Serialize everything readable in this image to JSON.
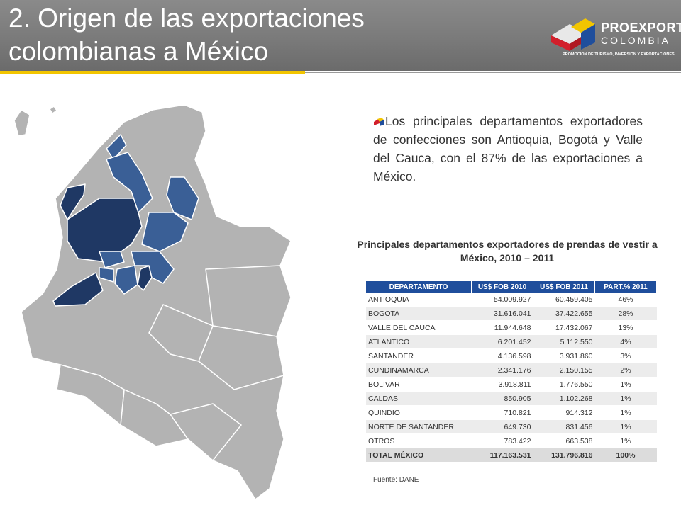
{
  "title": "2. Origen de las exportaciones colombianas a México",
  "logo": {
    "line1": "PROEXPORT",
    "line2": "COLOMBIA",
    "tagline": "PROMOCIÓN DE TURISMO, INVERSIÓN Y EXPORTACIONES"
  },
  "bullet_text": "Los principales departamentos exportadores de confecciones son Antioquia, Bogotá y Valle del Cauca, con el 87% de las exportaciones a México.",
  "table": {
    "title": "Principales departamentos exportadores de prendas de vestir a México, 2010 – 2011",
    "headers": [
      "DEPARTAMENTO",
      "US$ FOB 2010",
      "US$ FOB 2011",
      "PART.% 2011"
    ],
    "rows": [
      [
        "ANTIOQUIA",
        "54.009.927",
        "60.459.405",
        "46%"
      ],
      [
        "BOGOTA",
        "31.616.041",
        "37.422.655",
        "28%"
      ],
      [
        "VALLE DEL CAUCA",
        "11.944.648",
        "17.432.067",
        "13%"
      ],
      [
        "ATLANTICO",
        "6.201.452",
        "5.112.550",
        "4%"
      ],
      [
        "SANTANDER",
        "4.136.598",
        "3.931.860",
        "3%"
      ],
      [
        "CUNDINAMARCA",
        "2.341.176",
        "2.150.155",
        "2%"
      ],
      [
        "BOLIVAR",
        "3.918.811",
        "1.776.550",
        "1%"
      ],
      [
        "CALDAS",
        "850.905",
        "1.102.268",
        "1%"
      ],
      [
        "QUINDIO",
        "710.821",
        "914.312",
        "1%"
      ],
      [
        "NORTE DE SANTANDER",
        "649.730",
        "831.456",
        "1%"
      ],
      [
        "OTROS",
        "783.422",
        "663.538",
        "1%"
      ]
    ],
    "total": [
      "TOTAL MÉXICO",
      "117.163.531",
      "131.796.816",
      "100%"
    ]
  },
  "source": "Fuente: DANE",
  "colors": {
    "header_bg": "#7a7a7a",
    "accent_yellow": "#f2c500",
    "table_header": "#1f4e9c",
    "map_base": "#b3b3b3",
    "map_dark": "#1f3864",
    "map_mid": "#3a5f96"
  }
}
